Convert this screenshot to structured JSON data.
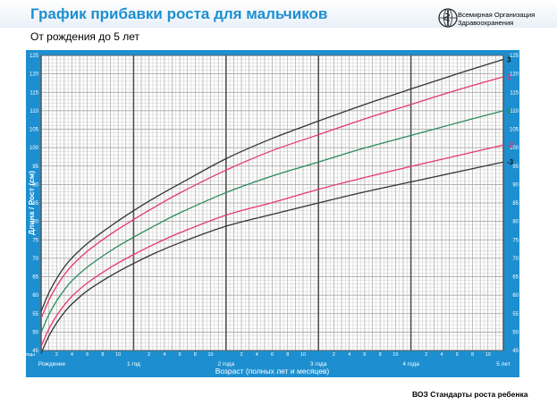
{
  "header": {
    "title": "График прибавки роста для мальчиков",
    "subtitle": "От рождения до 5 лет",
    "org_line1": "Всемирная Организация",
    "org_line2": "Здравоохранения",
    "logo_icon": "who-emblem-icon"
  },
  "footer": {
    "text": "ВОЗ Стандарты роста ребенка"
  },
  "colors": {
    "panel_bg": "#1d8fd0",
    "chart_bg": "#ffffff",
    "title": "#1d8fd0",
    "line_3": "#333333",
    "line_2": "#e5386c",
    "line_0": "#2a8a5a",
    "line_m2": "#e5386c",
    "line_m3": "#333333"
  },
  "chart_data": {
    "type": "line",
    "title": "",
    "xlabel": "Возраст (полных лет и месяцев)",
    "ylabel": "Длина / Рост (см)",
    "x_unit": "months",
    "xlim": [
      0,
      60
    ],
    "ylim": [
      45,
      125
    ],
    "y_ticks": [
      45,
      50,
      55,
      60,
      65,
      70,
      75,
      80,
      85,
      90,
      95,
      100,
      105,
      110,
      115,
      120,
      125
    ],
    "month_ticks": [
      2,
      4,
      6,
      8,
      10,
      14,
      16,
      18,
      20,
      22,
      26,
      28,
      30,
      32,
      34,
      38,
      40,
      42,
      44,
      46,
      50,
      52,
      54,
      56,
      58
    ],
    "month_tick_labels": [
      "2",
      "4",
      "6",
      "8",
      "10",
      "2",
      "4",
      "6",
      "8",
      "10",
      "2",
      "4",
      "6",
      "8",
      "10",
      "2",
      "4",
      "6",
      "8",
      "10",
      "2",
      "4",
      "6",
      "8",
      "10"
    ],
    "months_label": "Месяцы",
    "year_ticks": [
      {
        "x": 0,
        "label": "Рождение"
      },
      {
        "x": 12,
        "label": "1 год"
      },
      {
        "x": 24,
        "label": "2 года"
      },
      {
        "x": 36,
        "label": "3 года"
      },
      {
        "x": 48,
        "label": "4 года"
      },
      {
        "x": 60,
        "label": "5 лет"
      }
    ],
    "grid": true,
    "legend": "end-labels-right",
    "series": [
      {
        "name": "3",
        "color": "#333333",
        "x": [
          0,
          1,
          2,
          3,
          4,
          6,
          9,
          12,
          15,
          18,
          24,
          30,
          36,
          42,
          48,
          54,
          60
        ],
        "y": [
          55.6,
          60.6,
          64.4,
          67.6,
          70.1,
          74.0,
          78.7,
          82.9,
          86.7,
          90.2,
          97.0,
          102.5,
          107.2,
          111.7,
          115.9,
          120.0,
          123.9
        ]
      },
      {
        "name": "2",
        "color": "#e5386c",
        "x": [
          0,
          1,
          2,
          3,
          4,
          6,
          9,
          12,
          15,
          18,
          24,
          30,
          36,
          42,
          48,
          54,
          60
        ],
        "y": [
          53.7,
          58.6,
          62.4,
          65.5,
          68.0,
          71.9,
          76.5,
          80.5,
          84.2,
          87.7,
          93.9,
          99.2,
          103.5,
          107.8,
          111.7,
          115.6,
          119.2
        ]
      },
      {
        "name": "0",
        "color": "#2a8a5a",
        "x": [
          0,
          1,
          2,
          3,
          4,
          6,
          9,
          12,
          15,
          18,
          24,
          30,
          36,
          42,
          48,
          54,
          60
        ],
        "y": [
          49.9,
          54.7,
          58.4,
          61.4,
          63.9,
          67.6,
          72.0,
          75.7,
          79.1,
          82.3,
          87.8,
          92.3,
          96.1,
          99.9,
          103.3,
          106.7,
          110.0
        ]
      },
      {
        "name": "-2",
        "color": "#e5386c",
        "x": [
          0,
          1,
          2,
          3,
          4,
          6,
          9,
          12,
          15,
          18,
          24,
          30,
          36,
          42,
          48,
          54,
          60
        ],
        "y": [
          46.1,
          50.8,
          54.4,
          57.3,
          59.7,
          63.3,
          67.5,
          71.0,
          74.1,
          76.9,
          81.7,
          85.1,
          88.7,
          91.9,
          94.9,
          97.8,
          100.7
        ]
      },
      {
        "name": "-3",
        "color": "#333333",
        "x": [
          0,
          1,
          2,
          3,
          4,
          6,
          9,
          12,
          15,
          18,
          24,
          30,
          36,
          42,
          48,
          54,
          60
        ],
        "y": [
          44.2,
          48.9,
          52.4,
          55.3,
          57.6,
          61.2,
          65.2,
          68.6,
          71.6,
          74.2,
          78.7,
          81.9,
          85.0,
          88.0,
          90.7,
          93.4,
          96.1
        ]
      }
    ]
  }
}
